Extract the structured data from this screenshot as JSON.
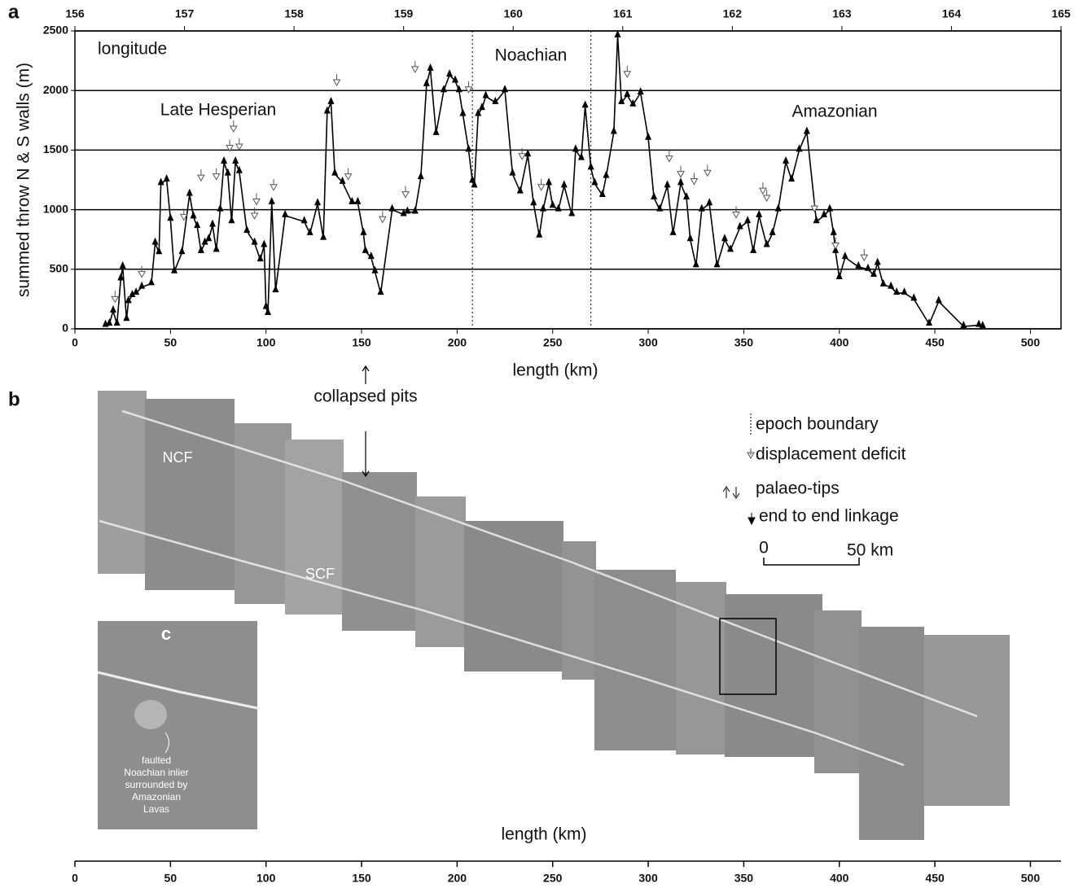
{
  "chart_data": {
    "type": "line",
    "panel_label": "a",
    "top_axis_label": "longitude",
    "ylabel": "summed throw N & S walls (m)",
    "xlabel": "length (km)",
    "annotations": [
      "Late Hesperian",
      "Noachian",
      "Amazonian"
    ],
    "epoch_boundaries": [
      208,
      270
    ],
    "xlim": [
      0,
      516
    ],
    "xticks": [
      0,
      50,
      100,
      150,
      200,
      250,
      300,
      350,
      400,
      450,
      500
    ],
    "x2lim": [
      156,
      165
    ],
    "x2ticks": [
      156,
      157,
      158,
      159,
      160,
      161,
      162,
      163,
      164,
      165
    ],
    "ylim": [
      0,
      2500
    ],
    "yticks": [
      0,
      500,
      1000,
      1500,
      2000,
      2500
    ],
    "grid": true,
    "series": [
      {
        "color": "#000000",
        "x": [
          16,
          18,
          20,
          22,
          24,
          25,
          27,
          28,
          30,
          32,
          35,
          40,
          42,
          44,
          45,
          48,
          50,
          52,
          56,
          60,
          62,
          64,
          66,
          68,
          70,
          72,
          74,
          76,
          78,
          80,
          82,
          84,
          86,
          90,
          94,
          97,
          99,
          100,
          101,
          103,
          105,
          110,
          120,
          123,
          127,
          130,
          132,
          134,
          136,
          140,
          145,
          148,
          151,
          152,
          155,
          157,
          160,
          166,
          172,
          174,
          178,
          181,
          184,
          186,
          189,
          193,
          196,
          199,
          201,
          203,
          206,
          208,
          209,
          211,
          213,
          215,
          220,
          225,
          229,
          233,
          237,
          240,
          243,
          245,
          248,
          250,
          253,
          256,
          260,
          262,
          265,
          267,
          270,
          272,
          276,
          278,
          282,
          284,
          286,
          289,
          292,
          296,
          300,
          303,
          306,
          310,
          313,
          317,
          320,
          322,
          325,
          328,
          332,
          336,
          340,
          343,
          348,
          352,
          355,
          358,
          362,
          365,
          368,
          372,
          375,
          379,
          383,
          388,
          392,
          395,
          397,
          398,
          400,
          403,
          410,
          415,
          418,
          420,
          423,
          427,
          430,
          434,
          439,
          447,
          452,
          465,
          473,
          475
        ],
        "values": [
          30,
          40,
          150,
          40,
          420,
          520,
          80,
          230,
          280,
          300,
          350,
          380,
          720,
          640,
          1220,
          1250,
          920,
          480,
          640,
          1130,
          940,
          860,
          650,
          720,
          750,
          870,
          660,
          1000,
          1400,
          1300,
          900,
          1400,
          1320,
          820,
          720,
          580,
          700,
          180,
          130,
          1060,
          320,
          950,
          900,
          800,
          1050,
          760,
          1820,
          1900,
          1300,
          1230,
          1060,
          1060,
          800,
          650,
          600,
          480,
          300,
          1000,
          960,
          980,
          980,
          1270,
          2050,
          2180,
          1640,
          2000,
          2130,
          2080,
          2000,
          1800,
          1500,
          1240,
          1200,
          1800,
          1850,
          1950,
          1900,
          2000,
          1300,
          1150,
          1460,
          1050,
          780,
          1000,
          1220,
          1030,
          1000,
          1200,
          960,
          1500,
          1430,
          1870,
          1350,
          1220,
          1120,
          1280,
          1650,
          2460,
          1900,
          1960,
          1880,
          1980,
          1600,
          1100,
          1000,
          1200,
          800,
          1220,
          1100,
          750,
          530,
          1000,
          1050,
          530,
          750,
          660,
          850,
          900,
          650,
          950,
          700,
          800,
          1000,
          1400,
          1250,
          1500,
          1650,
          900,
          950,
          1000,
          800,
          650,
          430,
          600,
          520,
          500,
          450,
          550,
          370,
          350,
          300,
          300,
          250,
          40,
          230,
          20,
          30,
          20
        ]
      },
      {
        "name": "displacement deficit",
        "color": "#555555",
        "x": [
          21,
          35,
          57,
          66,
          74,
          81,
          83,
          86,
          94,
          95,
          104,
          137,
          143,
          161,
          173,
          178,
          206,
          234,
          244,
          289,
          311,
          317,
          324,
          331,
          346,
          360,
          362,
          387,
          398,
          413
        ],
        "values": [
          250,
          460,
          940,
          1270,
          1280,
          1520,
          1680,
          1530,
          950,
          1070,
          1190,
          2070,
          1280,
          920,
          1130,
          2180,
          2010,
          1450,
          1190,
          2140,
          1430,
          1300,
          1240,
          1310,
          960,
          1160,
          1100,
          1010,
          700,
          600
        ]
      }
    ]
  },
  "panel_b": {
    "panel_label": "b",
    "pits_label": "collapsed pits",
    "fault_labels": [
      "NCF",
      "SCF"
    ],
    "legend": [
      "epoch boundary",
      "palaeo-tips",
      "end to end linkage"
    ],
    "scale_bar": [
      "0",
      "50 km"
    ],
    "inset_label": "c",
    "inset_text": [
      "faulted",
      "Noachian inlier",
      "surrounded by",
      "Amazonian",
      "Lavas"
    ],
    "xlabel": "length (km)",
    "xlim": [
      0,
      516
    ],
    "xticks": [
      0,
      50,
      100,
      150,
      200,
      250,
      300,
      350,
      400,
      450,
      500
    ]
  }
}
